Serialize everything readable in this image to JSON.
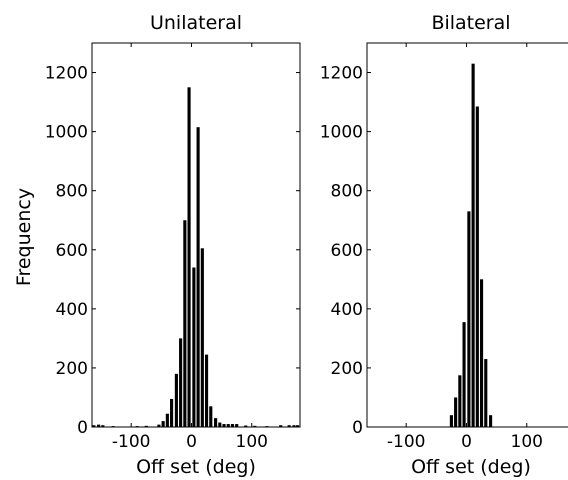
{
  "figure": {
    "ylabel": "Frequency",
    "xlabel": "Off set (deg)"
  },
  "chart_data": [
    {
      "type": "bar",
      "title": "Unilateral",
      "xlabel": "Off set (deg)",
      "ylabel": "Frequency",
      "xlim": [
        -165,
        180
      ],
      "ylim": [
        0,
        1300
      ],
      "xticks": [
        -100,
        0,
        100
      ],
      "yticks": [
        0,
        200,
        400,
        600,
        800,
        1000,
        1200
      ],
      "grid": false,
      "bin_width": 7.2,
      "x": [
        -162,
        -154,
        -147,
        -130,
        -90,
        -75,
        -54,
        -47,
        -40,
        -33,
        -25,
        -18,
        -11,
        -4,
        4,
        11,
        18,
        25,
        32,
        40,
        47,
        54,
        61,
        68,
        75,
        90,
        105,
        125,
        148,
        162,
        170,
        176
      ],
      "values": [
        6,
        8,
        6,
        3,
        3,
        4,
        8,
        20,
        45,
        95,
        180,
        300,
        700,
        1150,
        540,
        1015,
        605,
        245,
        70,
        30,
        15,
        10,
        10,
        10,
        10,
        5,
        4,
        3,
        6,
        6,
        6,
        6
      ]
    },
    {
      "type": "bar",
      "title": "Bilateral",
      "xlabel": "Off set (deg)",
      "ylabel": "Frequency",
      "xlim": [
        -165,
        180
      ],
      "ylim": [
        0,
        1300
      ],
      "xticks": [
        -100,
        0,
        100
      ],
      "yticks": [
        0,
        200,
        400,
        600,
        800,
        1000,
        1200
      ],
      "grid": false,
      "bin_width": 7.2,
      "x": [
        -25,
        -18,
        -11,
        -4,
        4,
        11,
        18,
        25,
        32,
        40
      ],
      "values": [
        40,
        100,
        175,
        355,
        730,
        1230,
        1085,
        500,
        230,
        40
      ]
    }
  ]
}
